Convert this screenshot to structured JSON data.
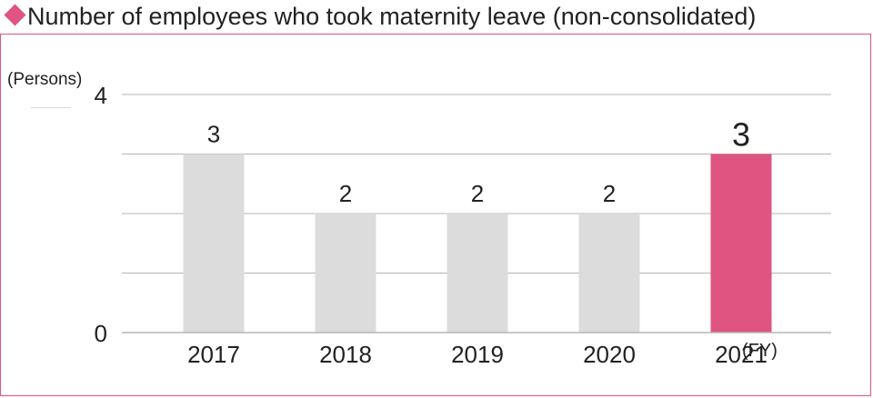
{
  "header": {
    "title": "Number of employees who took maternity leave (non-consolidated)"
  },
  "chart_data": {
    "type": "bar",
    "title": "Number of employees who took maternity leave (non-consolidated)",
    "ylabel": "(Persons)",
    "xlabel": "(FY)",
    "categories": [
      "2017",
      "2018",
      "2019",
      "2020",
      "2021"
    ],
    "values": [
      3,
      2,
      2,
      2,
      3
    ],
    "ylim": [
      0,
      4
    ],
    "yticks": [
      "0",
      "4"
    ],
    "grid": true,
    "highlight_index": 4,
    "colors": {
      "bar": "#dcdcdc",
      "highlight": "#df5480",
      "grid": "#b5b5b5"
    }
  }
}
